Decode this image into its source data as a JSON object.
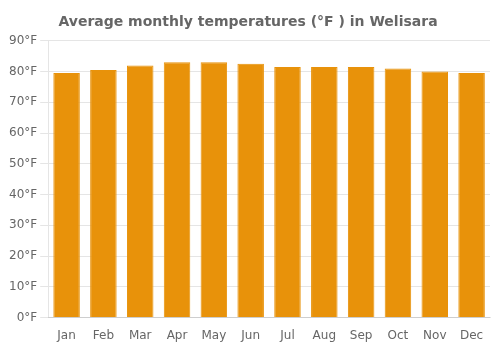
{
  "chart_data": {
    "type": "bar",
    "title": "Average monthly temperatures (°F ) in Welisara",
    "categories": [
      "Jan",
      "Feb",
      "Mar",
      "Apr",
      "May",
      "Jun",
      "Jul",
      "Aug",
      "Sep",
      "Oct",
      "Nov",
      "Dec"
    ],
    "values": [
      79.5,
      80.5,
      82.0,
      83.0,
      83.0,
      82.5,
      81.5,
      81.5,
      81.5,
      81.0,
      80.0,
      79.5
    ],
    "color": "#E8920A",
    "ylim": [
      0,
      90
    ],
    "yticks": [
      {
        "value": 0,
        "label": "0°F"
      },
      {
        "value": 10,
        "label": "10°F"
      },
      {
        "value": 20,
        "label": "20°F"
      },
      {
        "value": 30,
        "label": "30°F"
      },
      {
        "value": 40,
        "label": "40°F"
      },
      {
        "value": 50,
        "label": "50°F"
      },
      {
        "value": 60,
        "label": "60°F"
      },
      {
        "value": 70,
        "label": "70°F"
      },
      {
        "value": 80,
        "label": "80°F"
      },
      {
        "value": 90,
        "label": "90°F"
      }
    ],
    "grid": true
  }
}
